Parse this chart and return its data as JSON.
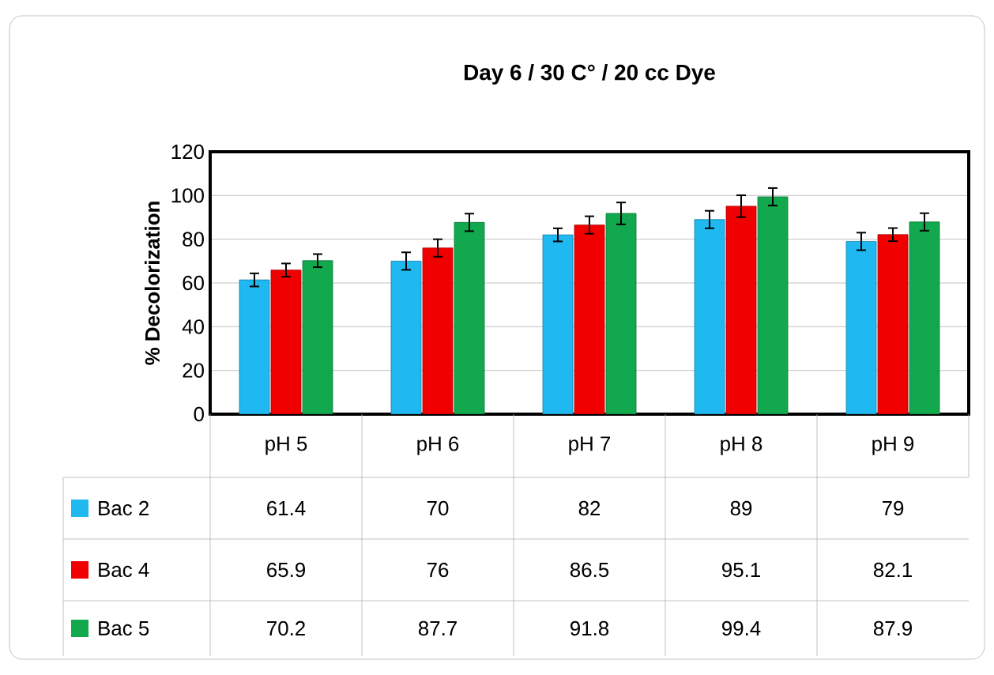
{
  "chart_data": {
    "type": "bar",
    "title": "Day 6 / 30 C° / 20 cc Dye",
    "ylabel": "% Decolorization",
    "categories": [
      "pH  5",
      "pH  6",
      "pH  7",
      "pH  8",
      "pH  9"
    ],
    "series": [
      {
        "name": "Bac 2",
        "color": "#1fb8f0",
        "values": [
          61.4,
          70,
          82,
          89,
          79
        ],
        "errors": [
          3,
          4,
          3,
          4,
          4
        ]
      },
      {
        "name": "Bac 4",
        "color": "#f00000",
        "values": [
          65.9,
          76,
          86.5,
          95.1,
          82.1
        ],
        "errors": [
          3,
          4,
          4,
          5,
          3
        ]
      },
      {
        "name": "Bac 5",
        "color": "#12a84e",
        "values": [
          70.2,
          87.7,
          91.8,
          99.4,
          87.9
        ],
        "errors": [
          3,
          4,
          5,
          4,
          4
        ]
      }
    ],
    "ylim": [
      0,
      120
    ],
    "yticks": [
      0,
      20,
      40,
      60,
      80,
      100,
      120
    ],
    "grid": "y",
    "legend": "bottom",
    "data_labels": true,
    "tick_labels": "y"
  }
}
